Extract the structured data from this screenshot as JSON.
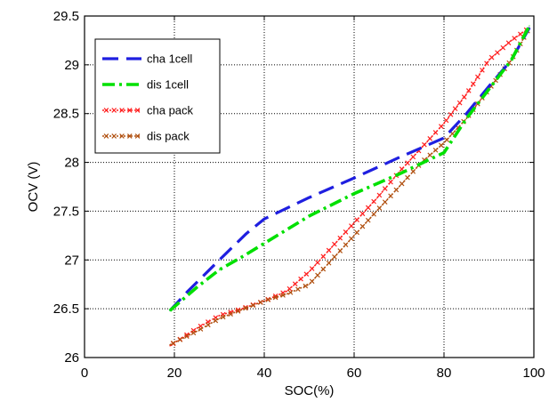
{
  "chart_data": {
    "type": "line",
    "title": "",
    "xlabel": "SOC(%)",
    "ylabel": "OCV (V)",
    "xlim": [
      0,
      100
    ],
    "ylim": [
      26,
      29.5
    ],
    "xticks": [
      0,
      20,
      40,
      60,
      80,
      100
    ],
    "yticks": [
      26,
      26.5,
      27,
      27.5,
      28,
      28.5,
      29,
      29.5
    ],
    "grid": true,
    "legend_position": "top-left",
    "series": [
      {
        "name": "cha 1cell",
        "color": "#1f1fe0",
        "style": "dashed",
        "x": [
          19,
          23,
          30,
          36,
          40,
          50,
          60,
          70,
          80,
          85,
          90,
          95,
          99
        ],
        "y": [
          26.48,
          26.68,
          27.0,
          27.27,
          27.42,
          27.64,
          27.84,
          28.05,
          28.25,
          28.5,
          28.78,
          29.05,
          29.38
        ]
      },
      {
        "name": "dis 1cell",
        "color": "#00e000",
        "style": "dashdot",
        "x": [
          19,
          25,
          30,
          35,
          40,
          50,
          60,
          70,
          80,
          85,
          90,
          95,
          99
        ],
        "y": [
          26.48,
          26.72,
          26.9,
          27.03,
          27.17,
          27.45,
          27.68,
          27.88,
          28.1,
          28.45,
          28.75,
          29.05,
          29.4
        ]
      },
      {
        "name": "cha pack",
        "color": "#ff2020",
        "style": "dotted-markers",
        "x": [
          19,
          25,
          30,
          35,
          40,
          45,
          50,
          55,
          60,
          65,
          70,
          75,
          80,
          85,
          90,
          95,
          99
        ],
        "y": [
          26.12,
          26.3,
          26.43,
          26.5,
          26.58,
          26.68,
          26.88,
          27.13,
          27.38,
          27.63,
          27.9,
          28.15,
          28.4,
          28.7,
          29.05,
          29.25,
          29.38
        ]
      },
      {
        "name": "dis pack",
        "color": "#b05010",
        "style": "dotted-markers",
        "x": [
          19,
          25,
          30,
          35,
          40,
          45,
          50,
          55,
          60,
          65,
          70,
          75,
          80,
          85,
          90,
          95,
          99
        ],
        "y": [
          26.13,
          26.27,
          26.4,
          26.49,
          26.58,
          26.65,
          26.75,
          27.0,
          27.25,
          27.5,
          27.75,
          28.0,
          28.2,
          28.45,
          28.75,
          29.05,
          29.38
        ]
      }
    ]
  }
}
